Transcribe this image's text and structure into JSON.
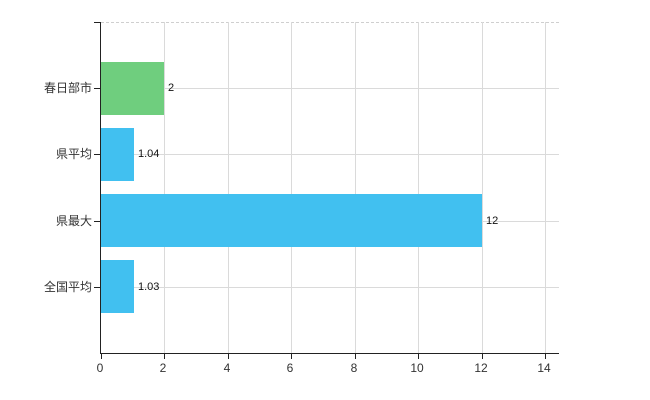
{
  "chart_data": {
    "type": "bar",
    "orientation": "horizontal",
    "title": "",
    "xlabel": "",
    "ylabel": "",
    "categories": [
      "春日部市",
      "県平均",
      "県最大",
      "全国平均"
    ],
    "values": [
      2,
      1.04,
      12,
      1.03
    ],
    "value_labels": [
      "2",
      "1.04",
      "12",
      "1.03"
    ],
    "bar_colors": [
      "#6fce7e",
      "#41c0f0",
      "#41c0f0",
      "#41c0f0"
    ],
    "xlim": [
      0,
      14.43
    ],
    "xticks": [
      0,
      2,
      4,
      6,
      8,
      10,
      12,
      14
    ],
    "xtick_labels": [
      "0",
      "2",
      "4",
      "6",
      "8",
      "10",
      "12",
      "14"
    ],
    "grid": true,
    "legend": false,
    "colors": {
      "axis": "#222222",
      "grid": "#dadada",
      "top_border": "#cfcfcf",
      "tick_text": "#333333",
      "value_text": "#111111",
      "background": "#ffffff"
    }
  }
}
